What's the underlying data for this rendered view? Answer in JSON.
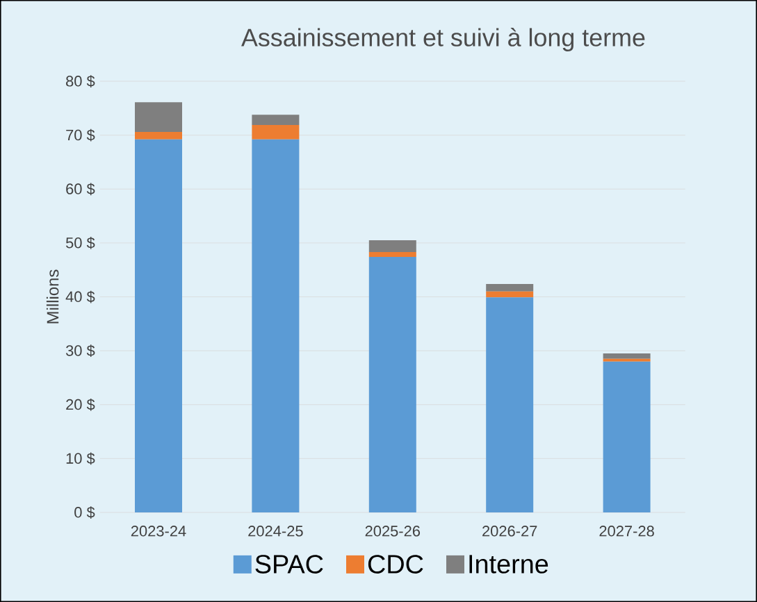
{
  "chart_data": {
    "type": "bar",
    "title": "Assainissement et suivi à long terme",
    "ylabel": "Millions",
    "stacked": true,
    "categories": [
      "2023-24",
      "2024-25",
      "2025-26",
      "2026-27",
      "2027-28"
    ],
    "series": [
      {
        "name": "SPAC",
        "color": "#5b9bd5",
        "values": [
          69.2,
          69.2,
          47.4,
          39.9,
          28.0
        ]
      },
      {
        "name": "CDC",
        "color": "#ed7d31",
        "values": [
          1.4,
          2.7,
          0.9,
          1.1,
          0.5
        ]
      },
      {
        "name": "Interne",
        "color": "#7f7f7f",
        "values": [
          5.5,
          1.9,
          2.2,
          1.4,
          1.0
        ]
      }
    ],
    "ylim": [
      0,
      80
    ],
    "yticks": [
      {
        "value": 0,
        "label": "0 $"
      },
      {
        "value": 10,
        "label": "10 $"
      },
      {
        "value": 20,
        "label": "20 $"
      },
      {
        "value": 30,
        "label": "30 $"
      },
      {
        "value": 40,
        "label": "40 $"
      },
      {
        "value": 50,
        "label": "50 $"
      },
      {
        "value": 60,
        "label": "60 $"
      },
      {
        "value": 70,
        "label": "70 $"
      },
      {
        "value": 80,
        "label": "80 $"
      }
    ],
    "grid": "y",
    "legend": "bottom"
  }
}
